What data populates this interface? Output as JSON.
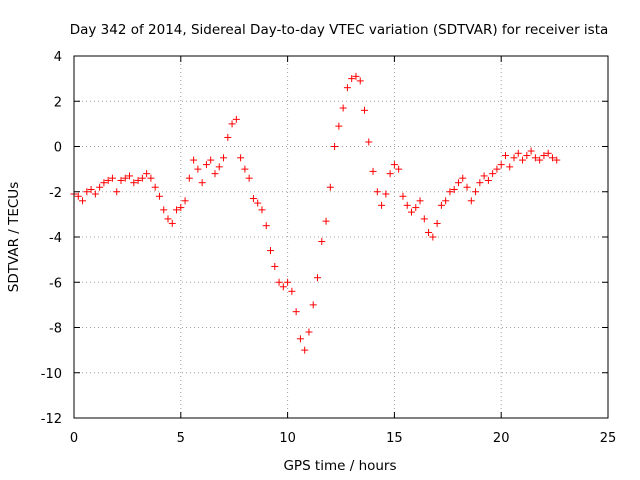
{
  "chart_data": {
    "type": "scatter",
    "title": "Day 342 of 2014, Sidereal Day-to-day VTEC variation (SDTVAR) for receiver ista",
    "xlabel": "GPS time / hours",
    "ylabel": "SDTVAR / TECUs",
    "xlim": [
      0,
      25
    ],
    "ylim": [
      -12,
      4
    ],
    "xticks": [
      0,
      5,
      10,
      15,
      20,
      25
    ],
    "yticks": [
      -12,
      -10,
      -8,
      -6,
      -4,
      -2,
      0,
      2,
      4
    ],
    "grid": true,
    "marker": "+",
    "series_color": "#ff0000",
    "series": [
      {
        "name": "SDTVAR",
        "x": [
          0.0,
          0.2,
          0.4,
          0.6,
          0.8,
          1.0,
          1.2,
          1.4,
          1.6,
          1.8,
          2.0,
          2.2,
          2.4,
          2.6,
          2.8,
          3.0,
          3.2,
          3.4,
          3.6,
          3.8,
          4.0,
          4.2,
          4.4,
          4.6,
          4.8,
          5.0,
          5.2,
          5.4,
          5.6,
          5.8,
          6.0,
          6.2,
          6.4,
          6.6,
          6.8,
          7.0,
          7.2,
          7.4,
          7.6,
          7.8,
          8.0,
          8.2,
          8.4,
          8.6,
          8.8,
          9.0,
          9.2,
          9.4,
          9.6,
          9.8,
          10.0,
          10.2,
          10.4,
          10.6,
          10.8,
          11.0,
          11.2,
          11.4,
          11.6,
          11.8,
          12.0,
          12.2,
          12.4,
          12.6,
          12.8,
          13.0,
          13.2,
          13.4,
          13.6,
          13.8,
          14.0,
          14.2,
          14.4,
          14.6,
          14.8,
          15.0,
          15.2,
          15.4,
          15.6,
          15.8,
          16.0,
          16.2,
          16.4,
          16.6,
          16.8,
          17.0,
          17.2,
          17.4,
          17.6,
          17.8,
          18.0,
          18.2,
          18.4,
          18.6,
          18.8,
          19.0,
          19.2,
          19.4,
          19.6,
          19.8,
          20.0,
          20.2,
          20.4,
          20.6,
          20.8,
          21.0,
          21.2,
          21.4,
          21.6,
          21.8,
          22.0,
          22.2,
          22.4,
          22.6
        ],
        "y": [
          -2.1,
          -2.2,
          -2.4,
          -2.0,
          -1.9,
          -2.1,
          -1.8,
          -1.6,
          -1.5,
          -1.4,
          -2.0,
          -1.5,
          -1.4,
          -1.3,
          -1.6,
          -1.5,
          -1.4,
          -1.2,
          -1.4,
          -1.8,
          -2.2,
          -2.8,
          -3.2,
          -3.4,
          -2.8,
          -2.7,
          -2.4,
          -1.4,
          -0.6,
          -1.0,
          -1.6,
          -0.8,
          -0.6,
          -1.2,
          -0.9,
          -0.5,
          0.4,
          1.0,
          1.2,
          -0.5,
          -1.0,
          -1.4,
          -2.3,
          -2.5,
          -2.8,
          -3.5,
          -4.6,
          -5.3,
          -6.0,
          -6.2,
          -6.0,
          -6.4,
          -7.3,
          -8.5,
          -9.0,
          -8.2,
          -7.0,
          -5.8,
          -4.2,
          -3.3,
          -1.8,
          0.0,
          0.9,
          1.7,
          2.6,
          3.0,
          3.1,
          2.9,
          1.6,
          0.2,
          -1.1,
          -2.0,
          -2.6,
          -2.1,
          -1.2,
          -0.8,
          -1.0,
          -2.2,
          -2.6,
          -2.9,
          -2.7,
          -2.4,
          -3.2,
          -3.8,
          -4.0,
          -3.4,
          -2.6,
          -2.4,
          -2.0,
          -1.9,
          -1.6,
          -1.4,
          -1.8,
          -2.4,
          -2.0,
          -1.6,
          -1.3,
          -1.5,
          -1.2,
          -1.0,
          -0.8,
          -0.4,
          -0.9,
          -0.5,
          -0.3,
          -0.6,
          -0.4,
          -0.2,
          -0.5,
          -0.6,
          -0.4,
          -0.3,
          -0.5,
          -0.6
        ]
      }
    ]
  }
}
